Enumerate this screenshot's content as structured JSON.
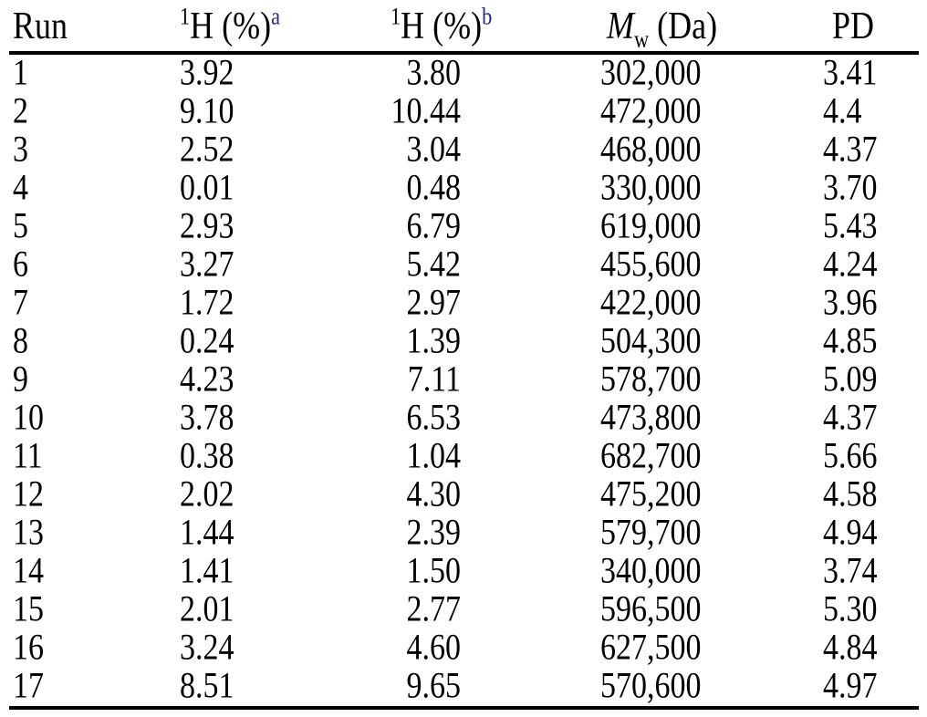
{
  "table": {
    "header": {
      "run": "Run",
      "h_a": {
        "sup": "1",
        "base": "H (%)",
        "note": "a"
      },
      "h_b": {
        "sup": "1",
        "base": "H (%)",
        "note": "b"
      },
      "mw": {
        "symbol": "M",
        "sub": "w",
        "unit": " (Da)"
      },
      "pd": "PD"
    },
    "rows": [
      {
        "run": "1",
        "h_a": "3.92",
        "h_b": "3.80",
        "mw": "302,000",
        "pd": "3.41"
      },
      {
        "run": "2",
        "h_a": "9.10",
        "h_b": "10.44",
        "mw": "472,000",
        "pd": "4.4"
      },
      {
        "run": "3",
        "h_a": "2.52",
        "h_b": "3.04",
        "mw": "468,000",
        "pd": "4.37"
      },
      {
        "run": "4",
        "h_a": "0.01",
        "h_b": "0.48",
        "mw": "330,000",
        "pd": "3.70"
      },
      {
        "run": "5",
        "h_a": "2.93",
        "h_b": "6.79",
        "mw": "619,000",
        "pd": "5.43"
      },
      {
        "run": "6",
        "h_a": "3.27",
        "h_b": "5.42",
        "mw": "455,600",
        "pd": "4.24"
      },
      {
        "run": "7",
        "h_a": "1.72",
        "h_b": "2.97",
        "mw": "422,000",
        "pd": "3.96"
      },
      {
        "run": "8",
        "h_a": "0.24",
        "h_b": "1.39",
        "mw": "504,300",
        "pd": "4.85"
      },
      {
        "run": "9",
        "h_a": "4.23",
        "h_b": "7.11",
        "mw": "578,700",
        "pd": "5.09"
      },
      {
        "run": "10",
        "h_a": "3.78",
        "h_b": "6.53",
        "mw": "473,800",
        "pd": "4.37"
      },
      {
        "run": "11",
        "h_a": "0.38",
        "h_b": "1.04",
        "mw": "682,700",
        "pd": "5.66"
      },
      {
        "run": "12",
        "h_a": "2.02",
        "h_b": "4.30",
        "mw": "475,200",
        "pd": "4.58"
      },
      {
        "run": "13",
        "h_a": "1.44",
        "h_b": "2.39",
        "mw": "579,700",
        "pd": "4.94"
      },
      {
        "run": "14",
        "h_a": "1.41",
        "h_b": "1.50",
        "mw": "340,000",
        "pd": "3.74"
      },
      {
        "run": "15",
        "h_a": "2.01",
        "h_b": "2.77",
        "mw": "596,500",
        "pd": "5.30"
      },
      {
        "run": "16",
        "h_a": "3.24",
        "h_b": "4.60",
        "mw": "627,500",
        "pd": "4.84"
      },
      {
        "run": "17",
        "h_a": "8.51",
        "h_b": "9.65",
        "mw": "570,600",
        "pd": "4.97"
      }
    ],
    "colors": {
      "text": "#000000",
      "footnote_marker": "#26268c",
      "rule": "#000000"
    }
  }
}
